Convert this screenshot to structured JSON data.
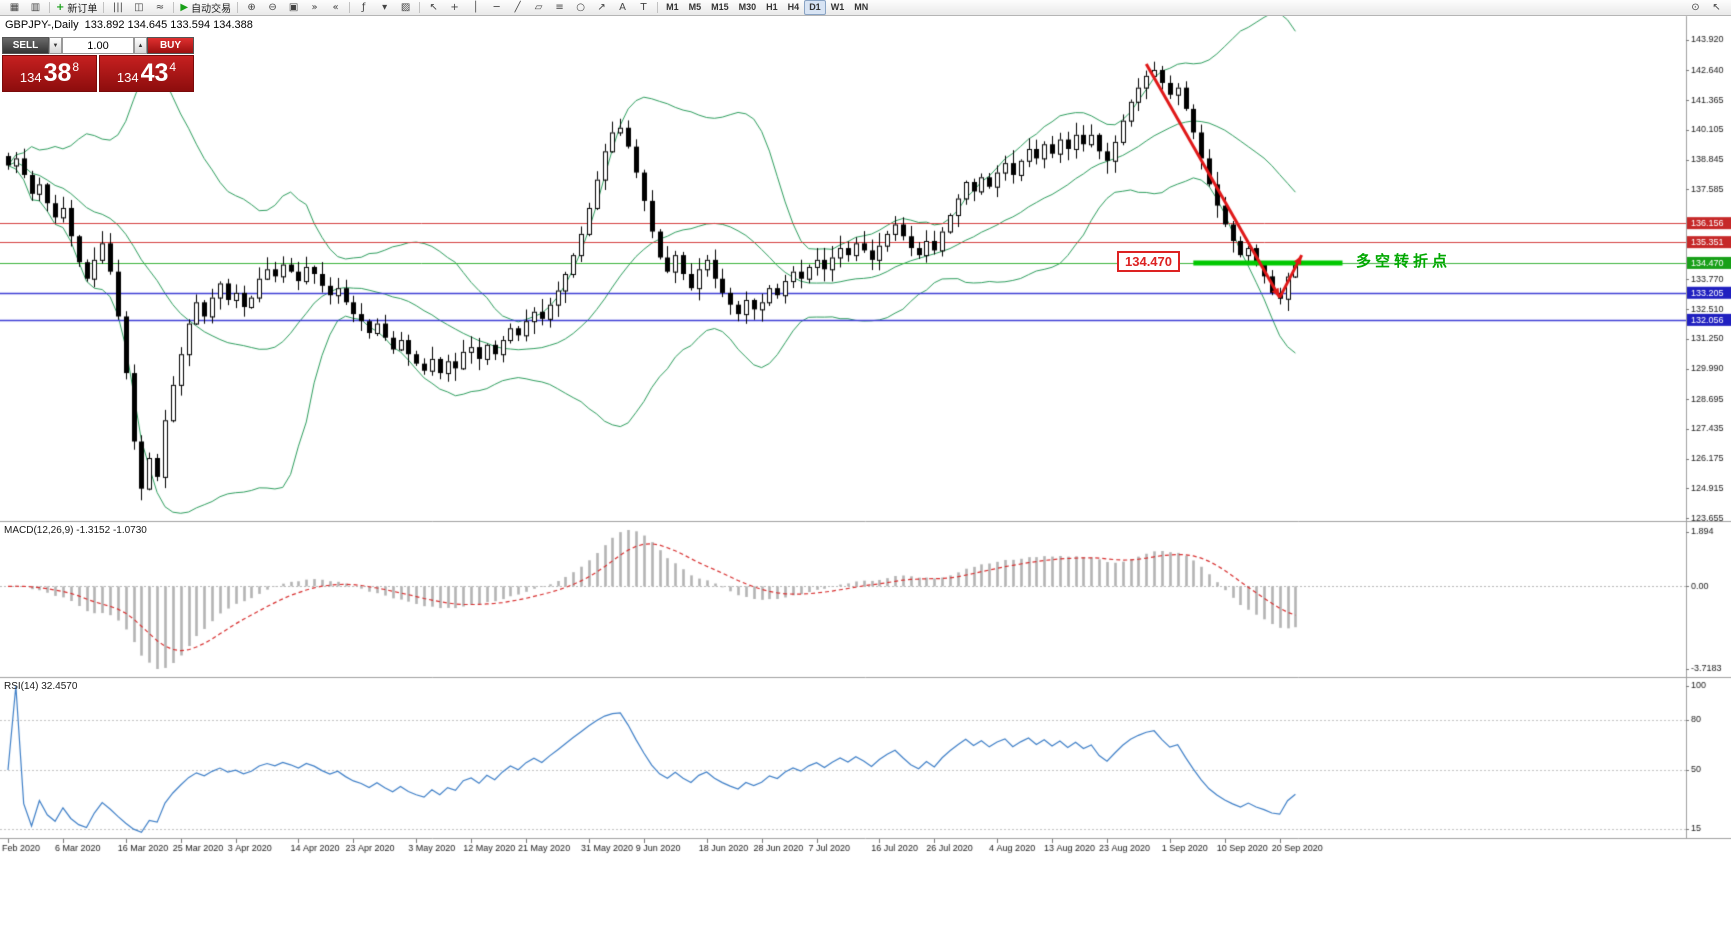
{
  "toolbar": {
    "active_timeframe": "D1",
    "groups": [
      {
        "items": [
          {
            "name": "new-chart-icon",
            "glyph": "▦"
          },
          {
            "name": "chart-profiles-icon",
            "glyph": "▥"
          }
        ]
      },
      {
        "items": [
          {
            "name": "new-order-button",
            "glyph": "+",
            "glyph_color": "#18a018",
            "label": "新订单"
          }
        ]
      },
      {
        "items": [
          {
            "name": "bar-chart-icon",
            "glyph": "|||"
          },
          {
            "name": "candlestick-chart-icon",
            "glyph": "◫"
          },
          {
            "name": "line-chart-icon",
            "glyph": "≈"
          }
        ]
      },
      {
        "items": [
          {
            "name": "autotrading-button",
            "glyph": "▶",
            "glyph_color": "#18a018",
            "label": "自动交易"
          }
        ]
      },
      {
        "items": [
          {
            "name": "zoom-in-icon",
            "glyph": "⊕"
          },
          {
            "name": "zoom-out-icon",
            "glyph": "⊖"
          },
          {
            "name": "tile-windows-icon",
            "glyph": "▣"
          },
          {
            "name": "auto-scroll-icon",
            "glyph": "»"
          },
          {
            "name": "chart-shift-icon",
            "glyph": "«"
          }
        ]
      },
      {
        "items": [
          {
            "name": "indicators-icon",
            "glyph": "ƒ"
          },
          {
            "name": "timeframes-menu-icon",
            "glyph": "▾"
          },
          {
            "name": "templates-icon",
            "glyph": "▨"
          }
        ]
      },
      {
        "items": [
          {
            "name": "cursor-icon",
            "glyph": "↖"
          },
          {
            "name": "crosshair-icon",
            "glyph": "+"
          },
          {
            "name": "vertical-line-icon",
            "glyph": "│"
          },
          {
            "name": "horizontal-line-icon",
            "glyph": "─"
          },
          {
            "name": "trendline-icon",
            "glyph": "╱"
          },
          {
            "name": "channel-icon",
            "glyph": "▱"
          },
          {
            "name": "fibonacci-icon",
            "glyph": "≡"
          },
          {
            "name": "shapes-icon",
            "glyph": "○"
          },
          {
            "name": "arrows-icon",
            "glyph": "↗"
          },
          {
            "name": "text-icon",
            "glyph": "A"
          },
          {
            "name": "text-label-icon",
            "glyph": "T"
          }
        ]
      },
      {
        "type": "timeframes",
        "items": [
          {
            "name": "tf-m1-button",
            "label": "M1"
          },
          {
            "name": "tf-m5-button",
            "label": "M5"
          },
          {
            "name": "tf-m15-button",
            "label": "M15"
          },
          {
            "name": "tf-m30-button",
            "label": "M30"
          },
          {
            "name": "tf-h1-button",
            "label": "H1"
          },
          {
            "name": "tf-h4-button",
            "label": "H4"
          },
          {
            "name": "tf-d1-button",
            "label": "D1"
          },
          {
            "name": "tf-w1-button",
            "label": "W1"
          },
          {
            "name": "tf-mn-button",
            "label": "MN"
          }
        ]
      },
      {
        "type": "spacer"
      },
      {
        "items": [
          {
            "name": "search-icon",
            "glyph": "⊙"
          },
          {
            "name": "pointer-icon",
            "glyph": "↖"
          }
        ]
      }
    ]
  },
  "chart_header": {
    "symbol_line": "GBPJPY-,Daily  133.892 134.645 133.594 134.388"
  },
  "quote_panel": {
    "sell_label": "SELL",
    "buy_label": "BUY",
    "volume": "1.00",
    "spin_down_glyph": "▼",
    "spin_up_glyph": "▲",
    "sell_price": {
      "big": "134",
      "mid": "38",
      "sup": "8"
    },
    "buy_price": {
      "big": "134",
      "mid": "43",
      "sup": "4"
    }
  },
  "indicators": {
    "macd_label": "MACD(12,26,9) -1.3152 -1.0730",
    "rsi_label": "RSI(14) 32.4570"
  },
  "chart_data": {
    "type": "candlestick",
    "symbol": "GBPJPY-",
    "timeframe": "Daily",
    "current_ohlc": {
      "open": 133.892,
      "high": 134.645,
      "low": 133.594,
      "close": 134.388
    },
    "y_axis_labels": [
      "143.920",
      "142.640",
      "141.365",
      "140.105",
      "138.845",
      "137.585",
      "133.770",
      "132.510",
      "131.250",
      "129.990",
      "128.695",
      "127.435",
      "126.175",
      "124.915",
      "123.655"
    ],
    "price_badges": [
      {
        "value": "136.156",
        "color": "#c62828"
      },
      {
        "value": "135.351",
        "color": "#c62828"
      },
      {
        "value": "134.470",
        "color": "#18a018"
      },
      {
        "value": "133.205",
        "color": "#2020c0"
      },
      {
        "value": "132.056",
        "color": "#2020c0"
      }
    ],
    "level_lines": [
      {
        "price": 136.156,
        "color": "#d54040",
        "width": 1
      },
      {
        "price": 135.351,
        "color": "#d54040",
        "width": 1
      },
      {
        "price": 134.47,
        "color": "#3cb43c",
        "width": 1
      },
      {
        "price": 133.205,
        "color": "#4040d5",
        "width": 1.4
      },
      {
        "price": 132.056,
        "color": "#4040d5",
        "width": 1.4
      }
    ],
    "x_labels": [
      "Feb 2020",
      "6 Mar 2020",
      "16 Mar 2020",
      "25 Mar 2020",
      "3 Apr 2020",
      "14 Apr 2020",
      "23 Apr 2020",
      "3 May 2020",
      "12 May 2020",
      "21 May 2020",
      "31 May 2020",
      "9 Jun 2020",
      "18 Jun 2020",
      "28 Jun 2020",
      "7 Jul 2020",
      "16 Jul 2020",
      "26 Jul 2020",
      "4 Aug 2020",
      "13 Aug 2020",
      "23 Aug 2020",
      "1 Sep 2020",
      "10 Sep 2020",
      "20 Sep 2020"
    ],
    "x_label_bars": [
      0,
      7,
      15,
      22,
      29,
      37,
      44,
      52,
      59,
      66,
      74,
      81,
      89,
      96,
      103,
      111,
      118,
      126,
      133,
      140,
      148,
      155,
      162
    ],
    "closes": [
      138.6,
      138.9,
      138.2,
      137.4,
      137.8,
      137.0,
      136.4,
      136.8,
      135.6,
      134.5,
      133.8,
      134.6,
      135.3,
      134.1,
      132.2,
      129.8,
      126.9,
      124.9,
      126.2,
      125.4,
      127.8,
      129.3,
      130.6,
      131.9,
      132.8,
      132.2,
      133.0,
      133.6,
      132.9,
      133.2,
      132.6,
      133.0,
      133.8,
      134.2,
      133.9,
      134.4,
      134.1,
      133.7,
      134.3,
      134.0,
      133.5,
      133.1,
      133.4,
      132.8,
      132.3,
      132.0,
      131.5,
      131.9,
      131.3,
      130.8,
      131.2,
      130.6,
      130.2,
      129.9,
      130.4,
      129.8,
      130.3,
      130.0,
      130.7,
      130.9,
      130.4,
      131.0,
      130.6,
      131.2,
      131.7,
      131.4,
      132.0,
      132.4,
      132.1,
      132.7,
      133.3,
      134.0,
      134.8,
      135.7,
      136.8,
      138.0,
      139.2,
      140.0,
      140.2,
      139.4,
      138.3,
      137.1,
      135.8,
      134.7,
      134.1,
      134.8,
      134.0,
      133.4,
      134.2,
      134.6,
      133.8,
      133.2,
      132.7,
      132.3,
      132.9,
      132.5,
      132.8,
      133.4,
      133.1,
      133.7,
      134.1,
      133.8,
      134.3,
      134.6,
      134.2,
      134.7,
      135.1,
      134.8,
      135.3,
      135.0,
      134.6,
      135.2,
      135.7,
      136.1,
      135.6,
      135.1,
      134.8,
      135.4,
      135.0,
      135.8,
      136.5,
      137.2,
      137.9,
      137.5,
      138.1,
      137.7,
      138.3,
      138.7,
      138.2,
      138.8,
      139.3,
      138.9,
      139.5,
      139.1,
      139.7,
      139.3,
      139.9,
      139.5,
      139.9,
      139.2,
      138.8,
      139.6,
      140.5,
      141.3,
      141.9,
      142.4,
      142.65,
      142.1,
      141.6,
      141.9,
      141.0,
      140.0,
      138.9,
      137.8,
      136.9,
      136.1,
      135.4,
      134.8,
      135.1,
      134.4,
      133.9,
      133.2,
      132.95,
      133.892,
      134.388
    ],
    "bollinger": {
      "period": 20,
      "deviations": 2,
      "color": "#2e9e5e"
    },
    "macd": {
      "fast": 12,
      "slow": 26,
      "signal": 9,
      "current": [
        -1.3152,
        -1.073
      ],
      "axis_labels": [
        "1.894",
        "0.00",
        "-3.7183"
      ],
      "histogram_color": "#b4b4b4",
      "signal_color": "#d83030"
    },
    "rsi": {
      "period": 14,
      "current": 32.457,
      "axis_labels": [
        "100",
        "80",
        "50",
        "15"
      ],
      "levels": [
        80,
        50,
        15
      ],
      "color": "#4080c8"
    },
    "annotations": {
      "price_box_label": "134.470",
      "note_text": "多空转折点",
      "note_color": "#00a800",
      "green_segment": {
        "price": 134.47,
        "from_bar": 151,
        "to_bar": 170,
        "color": "#00c800",
        "width": 5
      },
      "trend_arrow": {
        "color": "#e01818",
        "width": 3,
        "segments": [
          {
            "from_bar": 145,
            "from_price": 142.9,
            "to_bar": 162,
            "to_price": 133.0
          },
          {
            "from_bar": 162,
            "from_price": 133.0,
            "to_bar": 164.8,
            "to_price": 134.8
          }
        ]
      }
    }
  }
}
